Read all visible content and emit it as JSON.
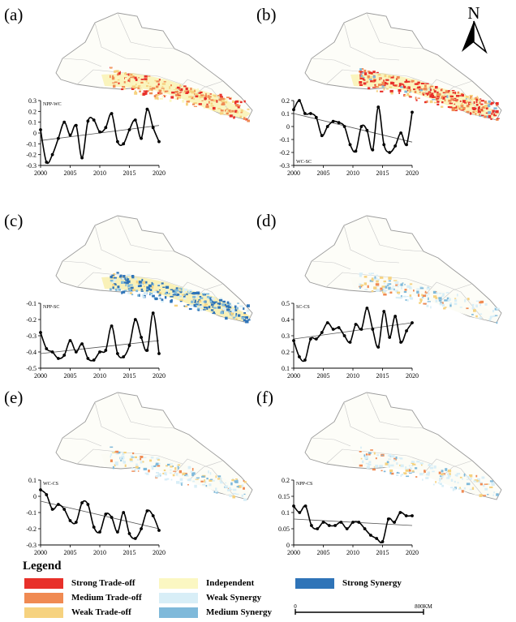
{
  "panels": [
    {
      "letter": "(a)",
      "title": "NPP-WC",
      "yticks": [
        "0.3",
        "0.2",
        "0.1",
        "0",
        "-0.1",
        "-0.2",
        "-0.3"
      ],
      "ymin": -0.3,
      "ymax": 0.3,
      "values": [
        0.03,
        -0.27,
        -0.2,
        -0.05,
        0.1,
        -0.02,
        0.07,
        -0.23,
        0.11,
        0.12,
        0.01,
        0.05,
        0.18,
        -0.08,
        -0.1,
        0.03,
        0.12,
        -0.05,
        0.22,
        0.05,
        -0.08
      ],
      "trend": [
        -0.07,
        0.07
      ],
      "palette": "tradeoff"
    },
    {
      "letter": "(b)",
      "title": "WC-SC",
      "yticks": [
        "0.2",
        "0.1",
        "0",
        "-0.1",
        "-0.2",
        "-0.3"
      ],
      "ymin": -0.3,
      "ymax": 0.2,
      "values": [
        0.13,
        0.2,
        0.1,
        0.1,
        0.07,
        -0.07,
        0.0,
        0.04,
        0.03,
        0.0,
        -0.14,
        -0.19,
        0.0,
        -0.03,
        -0.18,
        0.15,
        -0.14,
        -0.2,
        -0.15,
        -0.05,
        -0.14,
        0.11
      ],
      "trend": [
        0.1,
        -0.12
      ],
      "palette": "tradeoff_strong"
    },
    {
      "letter": "(c)",
      "title": "NPP-SC",
      "yticks": [
        "-0.1",
        "-0.2",
        "-0.3",
        "-0.4",
        "-0.5"
      ],
      "ymin": -0.5,
      "ymax": -0.1,
      "values": [
        -0.28,
        -0.38,
        -0.4,
        -0.44,
        -0.42,
        -0.33,
        -0.4,
        -0.35,
        -0.44,
        -0.45,
        -0.4,
        -0.39,
        -0.24,
        -0.41,
        -0.43,
        -0.36,
        -0.2,
        -0.31,
        -0.39,
        -0.16,
        -0.41
      ],
      "trend": [
        -0.41,
        -0.33
      ],
      "palette": "synergy"
    },
    {
      "letter": "(d)",
      "title": "SC-CS",
      "yticks": [
        "0.5",
        "0.4",
        "0.3",
        "0.2",
        "0.1"
      ],
      "ymin": 0.1,
      "ymax": 0.5,
      "values": [
        0.27,
        0.17,
        0.15,
        0.28,
        0.28,
        0.32,
        0.38,
        0.34,
        0.35,
        0.3,
        0.26,
        0.37,
        0.34,
        0.47,
        0.34,
        0.23,
        0.45,
        0.29,
        0.42,
        0.26,
        0.33,
        0.38
      ],
      "trend": [
        0.28,
        0.38
      ],
      "palette": "light"
    },
    {
      "letter": "(e)",
      "title": "WC-CS",
      "yticks": [
        "0.1",
        "0",
        "-0.1",
        "-0.2",
        "-0.3"
      ],
      "ymin": -0.3,
      "ymax": 0.1,
      "values": [
        0.04,
        0.01,
        -0.08,
        -0.05,
        -0.08,
        -0.15,
        -0.16,
        -0.04,
        -0.05,
        -0.19,
        -0.22,
        -0.11,
        -0.13,
        -0.22,
        -0.1,
        -0.23,
        -0.26,
        -0.2,
        -0.09,
        -0.12,
        -0.21
      ],
      "trend": [
        -0.03,
        -0.2
      ],
      "palette": "light"
    },
    {
      "letter": "(f)",
      "title": "NPP-CS",
      "yticks": [
        "0.2",
        "0.15",
        "0.1",
        "0.05",
        "0"
      ],
      "ymin": 0,
      "ymax": 0.2,
      "values": [
        0.12,
        0.1,
        0.12,
        0.06,
        0.05,
        0.07,
        0.06,
        0.06,
        0.07,
        0.05,
        0.07,
        0.07,
        0.05,
        0.03,
        0.02,
        0.01,
        0.08,
        0.07,
        0.1,
        0.09,
        0.09
      ],
      "trend": [
        0.08,
        0.06
      ],
      "palette": "light"
    }
  ],
  "xticks": [
    "2000",
    "2005",
    "2010",
    "2015",
    "2020"
  ],
  "north": "N",
  "legend": {
    "title": "Legend",
    "items": [
      {
        "label": "Strong Trade-off",
        "color": "#e8302a"
      },
      {
        "label": "Medium Trade-off",
        "color": "#f08a52"
      },
      {
        "label": "Weak Trade-off",
        "color": "#f6d27f"
      },
      {
        "label": "Independent",
        "color": "#fbf7c2"
      },
      {
        "label": "Weak Synergy",
        "color": "#d8eef7"
      },
      {
        "label": "Medium Synergy",
        "color": "#7fb9da"
      },
      {
        "label": "Strong Synergy",
        "color": "#2f74b8"
      }
    ]
  },
  "scalebar": {
    "start": "0",
    "end": "800KM"
  }
}
